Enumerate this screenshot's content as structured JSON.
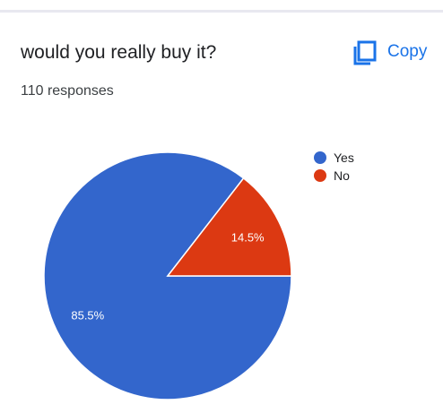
{
  "question": {
    "title": "would you really buy it?",
    "responses_label": "110 responses"
  },
  "toolbar": {
    "copy_label": "Copy",
    "copy_icon": "copy-icon"
  },
  "colors": {
    "yes": "#3366cc",
    "no": "#dc3912",
    "accent": "#1a73e8"
  },
  "chart_data": {
    "type": "pie",
    "categories": [
      "Yes",
      "No"
    ],
    "values": [
      85.5,
      14.5
    ],
    "labels": [
      "85.5%",
      "14.5%"
    ],
    "legend_position": "top-right",
    "title": ""
  }
}
